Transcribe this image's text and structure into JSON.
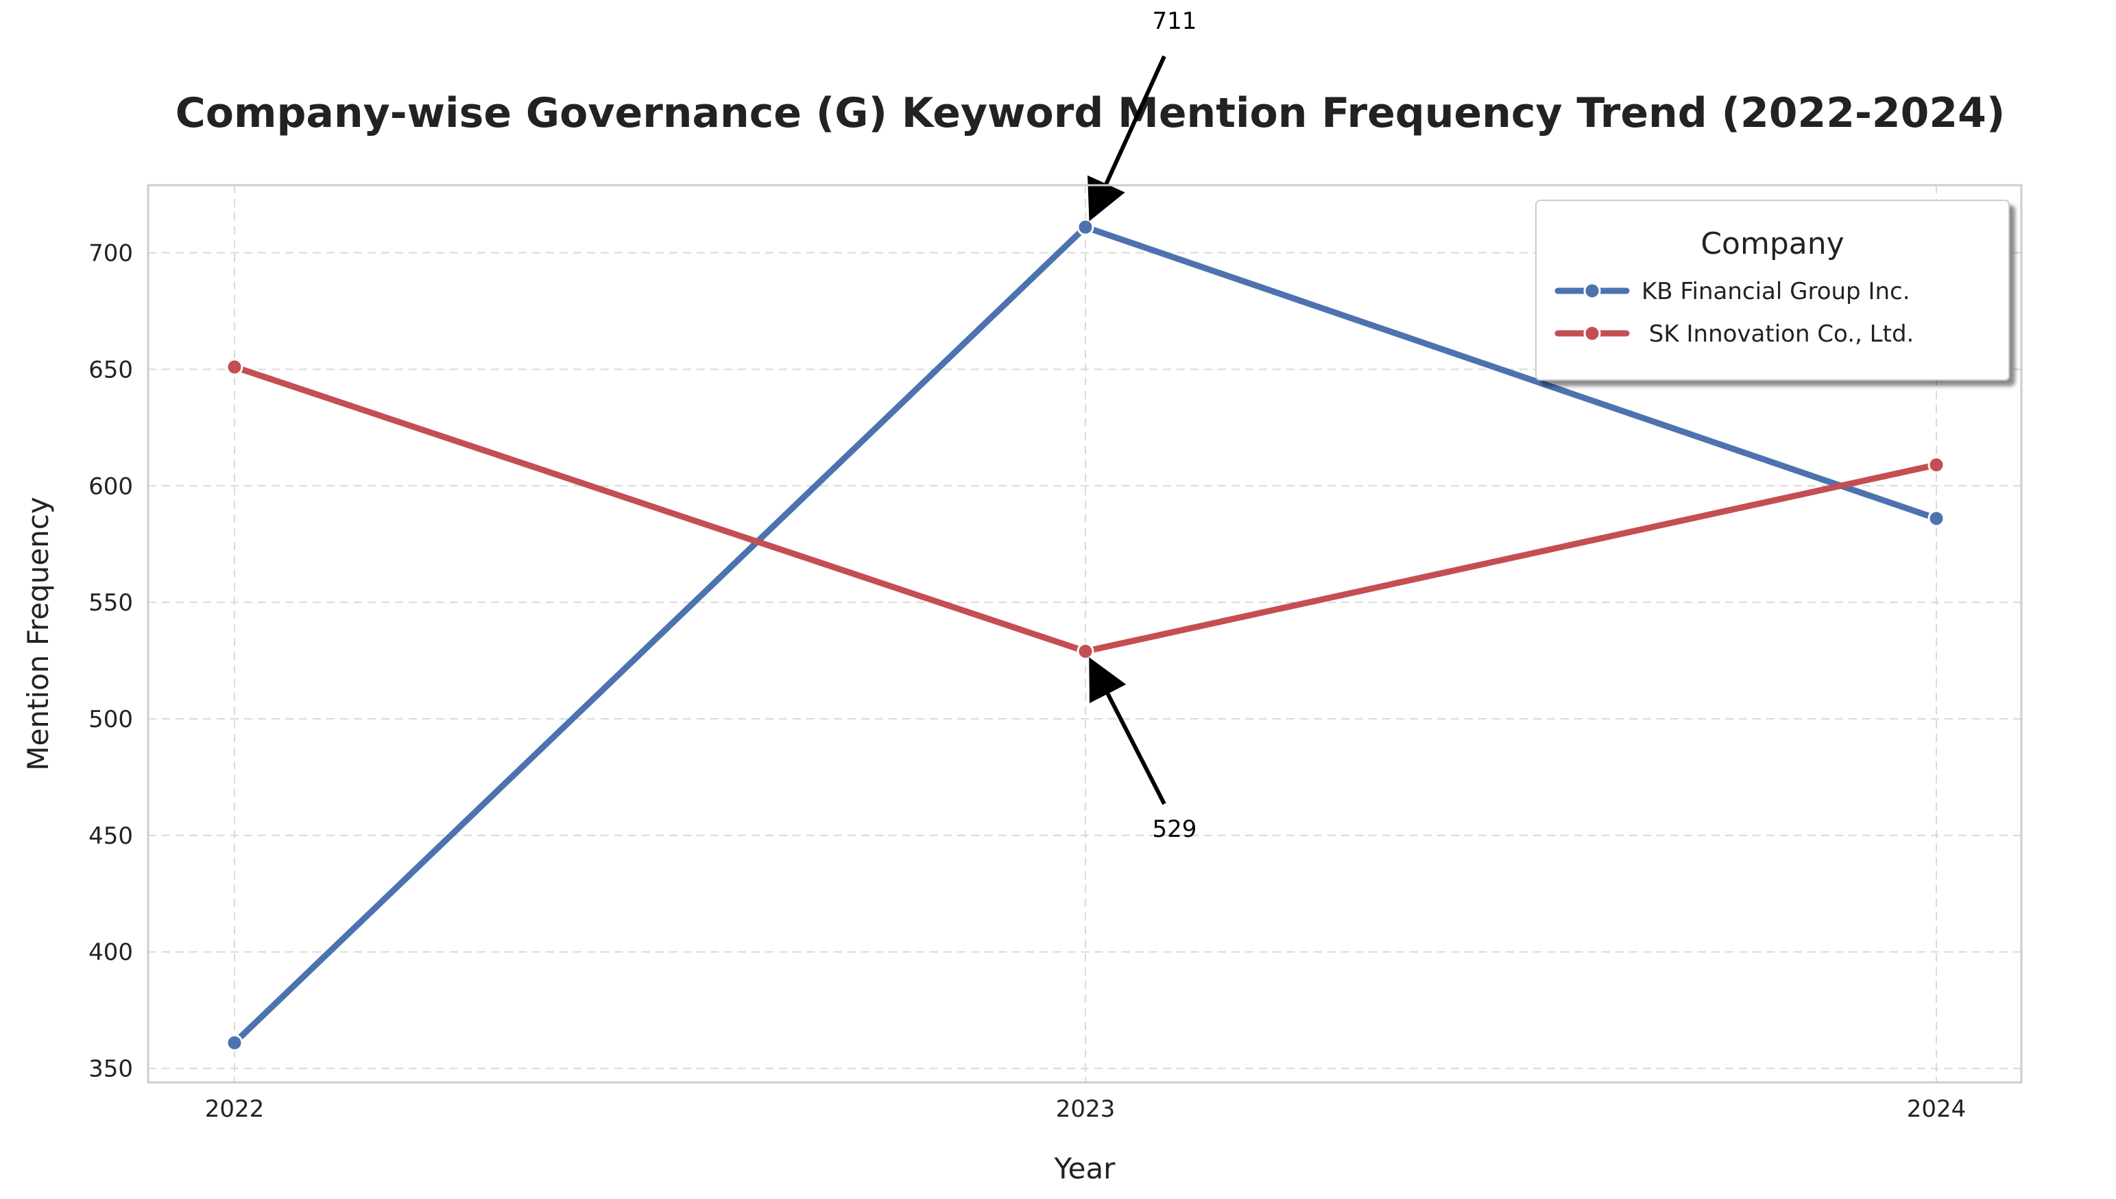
{
  "chart_data": {
    "type": "line",
    "title": "Company-wise Governance (G) Keyword Mention Frequency Trend (2022-2024)",
    "xlabel": "Year",
    "ylabel": "Mention Frequency",
    "x": [
      "2022",
      "2023",
      "2024"
    ],
    "ylim": [
      344,
      729
    ],
    "yticks": [
      350,
      400,
      450,
      500,
      550,
      600,
      650,
      700
    ],
    "grid": true,
    "legend": {
      "title": "Company",
      "placement": "top-right"
    },
    "series": [
      {
        "name": "KB Financial Group Inc.",
        "color": "#4c72b0",
        "values": [
          361,
          711,
          586
        ]
      },
      {
        "name": " SK Innovation Co., Ltd.",
        "color": "#c44e52",
        "values": [
          651,
          529,
          609
        ]
      }
    ],
    "annotations": [
      {
        "text": "711",
        "x": "2023",
        "y": 711,
        "series": "KB Financial Group Inc."
      },
      {
        "text": "529",
        "x": "2023",
        "y": 529,
        "series": " SK Innovation Co., Ltd."
      }
    ]
  }
}
